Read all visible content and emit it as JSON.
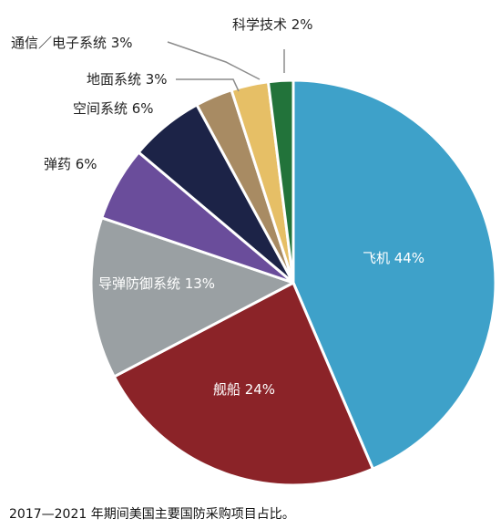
{
  "chart_data": {
    "type": "pie",
    "title": "",
    "slices": [
      {
        "label": "飞机 44%",
        "value": 44,
        "color": "#3ea1c9"
      },
      {
        "label": "舰船 24%",
        "value": 24,
        "color": "#8b2328"
      },
      {
        "label": "导弹防御系统 13%",
        "value": 13,
        "color": "#9aa0a3"
      },
      {
        "label": "弹药 6%",
        "value": 6,
        "color": "#6a4d9b"
      },
      {
        "label": "空间系统 6%",
        "value": 6,
        "color": "#1c2347"
      },
      {
        "label": "地面系统 3%",
        "value": 3,
        "color": "#a88b63"
      },
      {
        "label": "通信／电子系统 3%",
        "value": 3,
        "color": "#e6bf66"
      },
      {
        "label": "科学技术 2%",
        "value": 2,
        "color": "#22733a"
      }
    ],
    "start": "12 o'clock",
    "direction": "clockwise",
    "legend": "none (slice labels)"
  },
  "caption": "2017—2021 年期间美国主要国防采购项目占比。"
}
